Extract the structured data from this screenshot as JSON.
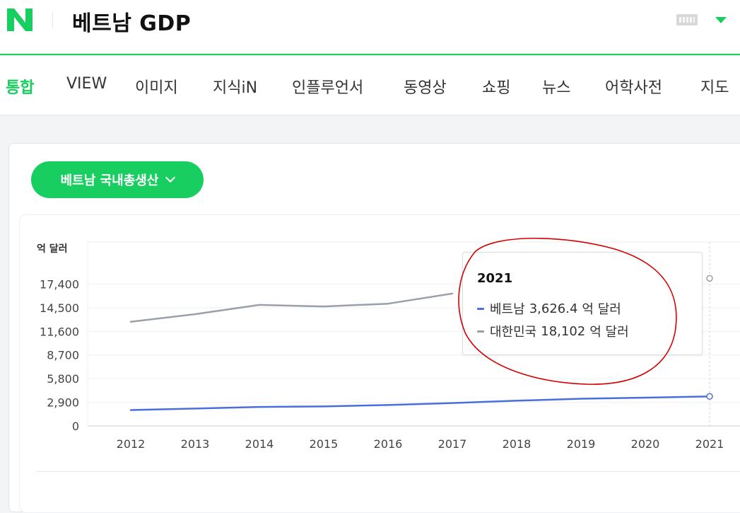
{
  "header": {
    "logo_letter": "N",
    "search_query": "베트남 GDP"
  },
  "tabs": [
    {
      "label": "통합",
      "active": true
    },
    {
      "label": "VIEW",
      "active": false
    },
    {
      "label": "이미지",
      "active": false
    },
    {
      "label": "지식iN",
      "active": false
    },
    {
      "label": "인플루언서",
      "active": false
    },
    {
      "label": "동영상",
      "active": false
    },
    {
      "label": "쇼핑",
      "active": false
    },
    {
      "label": "뉴스",
      "active": false
    },
    {
      "label": "어학사전",
      "active": false
    },
    {
      "label": "지도",
      "active": false
    }
  ],
  "indicator_select": {
    "label": "베트남 국내총생산"
  },
  "tooltip": {
    "year": "2021",
    "rows": [
      {
        "name": "베트남",
        "value": "3,626.4",
        "unit": "억 달러",
        "color": "#4a6fdc"
      },
      {
        "name": "대한민국",
        "value": "18,102",
        "unit": "억 달러",
        "color": "#9aa0a8"
      }
    ]
  },
  "chart_data": {
    "type": "line",
    "ylabel": "억 달러",
    "x": [
      "2012",
      "2013",
      "2014",
      "2015",
      "2016",
      "2017",
      "2018",
      "2019",
      "2020",
      "2021"
    ],
    "y_ticks": [
      "0",
      "2,900",
      "5,800",
      "8,700",
      "11,600",
      "14,500",
      "17,400"
    ],
    "ylim": [
      0,
      20300
    ],
    "grid": true,
    "series": [
      {
        "name": "베트남",
        "color": "#4a6fdc",
        "values": [
          1956,
          2134,
          2332,
          2393,
          2570,
          2810,
          3100,
          3343,
          3466,
          3626.4
        ]
      },
      {
        "name": "대한민국",
        "color": "#9aa0a8",
        "values": [
          12775,
          13705,
          14840,
          14654,
          14995,
          16233,
          null,
          null,
          null,
          18102
        ]
      }
    ],
    "highlight_x": "2021"
  },
  "annotation": {
    "color": "#d40000"
  }
}
